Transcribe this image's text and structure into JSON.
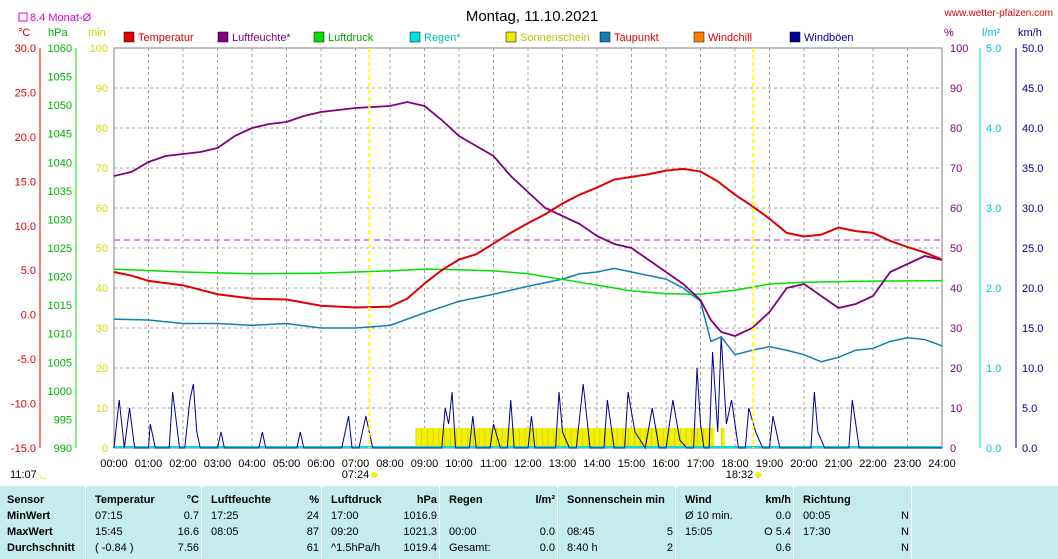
{
  "header": {
    "title": "Montag, 11.10.2021",
    "source": "www.wetter-pfalzen.com",
    "monthly_avg_label": "8.4 Monat-Ø",
    "sunrise": "07:24",
    "sunset": "18:32",
    "moon_time": "11:07"
  },
  "units": {
    "temp": "°C",
    "pressure": "hPa",
    "min": "min",
    "percent": "%",
    "rain": "l/m²",
    "wind": "km/h"
  },
  "legend": [
    {
      "label": "Temperatur",
      "color": "#e00000",
      "text_color": "#e00000"
    },
    {
      "label": "Luftfeuchte*",
      "color": "#800080",
      "text_color": "#800080"
    },
    {
      "label": "Luftdruck",
      "color": "#00e000",
      "text_color": "#00a000"
    },
    {
      "label": "Regen*",
      "color": "#00e0e0",
      "text_color": "#00c0c0"
    },
    {
      "label": "Sonnenschein",
      "color": "#e8e800",
      "text_color": "#c0c000"
    },
    {
      "label": "Taupunkt",
      "color": "#1080b0",
      "text_color": "#e00000"
    },
    {
      "label": "Windchill",
      "color": "#ff8000",
      "text_color": "#e00000"
    },
    {
      "label": "Windböen",
      "color": "#000090",
      "text_color": "#000090"
    }
  ],
  "axes": {
    "temp_ticks": [
      "30.0",
      "25.0",
      "20.0",
      "15.0",
      "10.0",
      "5.0",
      "0.0",
      "-5.0",
      "-10.0",
      "-15.0"
    ],
    "pressure_ticks": [
      "1060",
      "1055",
      "1050",
      "1045",
      "1040",
      "1035",
      "1030",
      "1025",
      "1020",
      "1015",
      "1010",
      "1005",
      "1000",
      "995",
      "990"
    ],
    "min_ticks": [
      "100",
      "90",
      "80",
      "70",
      "60",
      "50",
      "40",
      "30",
      "20",
      "10",
      "0"
    ],
    "percent_ticks": [
      "100",
      "90",
      "80",
      "70",
      "60",
      "50",
      "40",
      "30",
      "20",
      "10",
      "0"
    ],
    "rain_ticks": [
      "5.0",
      "4.0",
      "3.0",
      "2.0",
      "1.0",
      "0.0"
    ],
    "wind_ticks": [
      "50.0",
      "45.0",
      "40.0",
      "35.0",
      "30.0",
      "25.0",
      "20.0",
      "15.0",
      "10.0",
      "5.0",
      "0.0"
    ],
    "time_ticks": [
      "00:00",
      "01:00",
      "02:00",
      "03:00",
      "04:00",
      "05:00",
      "06:00",
      "07:00",
      "08:00",
      "09:00",
      "10:00",
      "11:00",
      "12:00",
      "13:00",
      "14:00",
      "15:00",
      "16:00",
      "17:00",
      "18:00",
      "19:00",
      "20:00",
      "21:00",
      "22:00",
      "23:00",
      "24:00"
    ]
  },
  "chart_data": {
    "type": "line",
    "title": "Montag, 11.10.2021",
    "x_unit": "hours",
    "xlim": [
      0,
      24
    ],
    "monthly_avg_temp": 8.4,
    "series": [
      {
        "name": "Temperatur",
        "unit": "°C",
        "ylim": [
          -15,
          30
        ],
        "points": [
          [
            0,
            4.8
          ],
          [
            0.5,
            4.4
          ],
          [
            1,
            3.8
          ],
          [
            2,
            3.3
          ],
          [
            3,
            2.3
          ],
          [
            4,
            1.8
          ],
          [
            5,
            1.7
          ],
          [
            6,
            1.0
          ],
          [
            7,
            0.8
          ],
          [
            8,
            0.9
          ],
          [
            8.5,
            1.8
          ],
          [
            9,
            3.5
          ],
          [
            9.5,
            5.0
          ],
          [
            10,
            6.2
          ],
          [
            10.5,
            6.8
          ],
          [
            11,
            8.0
          ],
          [
            11.5,
            9.2
          ],
          [
            12,
            10.3
          ],
          [
            12.5,
            11.3
          ],
          [
            13,
            12.5
          ],
          [
            13.5,
            13.5
          ],
          [
            14,
            14.3
          ],
          [
            14.5,
            15.2
          ],
          [
            15,
            15.5
          ],
          [
            15.5,
            15.8
          ],
          [
            16,
            16.2
          ],
          [
            16.5,
            16.4
          ],
          [
            17,
            16.1
          ],
          [
            17.5,
            15.0
          ],
          [
            18,
            13.5
          ],
          [
            18.5,
            12.2
          ],
          [
            19,
            10.8
          ],
          [
            19.5,
            9.2
          ],
          [
            20,
            8.8
          ],
          [
            20.5,
            9.0
          ],
          [
            21,
            9.8
          ],
          [
            21.5,
            9.4
          ],
          [
            22,
            9.2
          ],
          [
            22.5,
            8.3
          ],
          [
            23,
            7.6
          ],
          [
            23.5,
            7.0
          ],
          [
            24,
            6.2
          ]
        ]
      },
      {
        "name": "Luftfeuchte*",
        "unit": "%",
        "ylim": [
          0,
          100
        ],
        "points": [
          [
            0,
            68
          ],
          [
            0.5,
            69
          ],
          [
            1,
            71.5
          ],
          [
            1.5,
            73
          ],
          [
            2,
            73.5
          ],
          [
            2.5,
            74
          ],
          [
            3,
            75
          ],
          [
            3.5,
            78
          ],
          [
            4,
            80
          ],
          [
            4.5,
            81
          ],
          [
            5,
            81.5
          ],
          [
            5.5,
            83
          ],
          [
            6,
            84
          ],
          [
            7,
            85
          ],
          [
            8,
            85.5
          ],
          [
            8.5,
            86.5
          ],
          [
            9,
            85.5
          ],
          [
            9.5,
            82
          ],
          [
            10,
            78
          ],
          [
            11,
            73
          ],
          [
            11.5,
            68
          ],
          [
            12,
            64
          ],
          [
            12.5,
            60
          ],
          [
            13,
            58
          ],
          [
            13.5,
            56
          ],
          [
            14,
            53
          ],
          [
            14.5,
            51
          ],
          [
            15,
            50
          ],
          [
            15.5,
            47
          ],
          [
            16,
            44
          ],
          [
            16.5,
            41
          ],
          [
            17,
            37
          ],
          [
            17.3,
            32
          ],
          [
            17.6,
            29
          ],
          [
            18,
            28
          ],
          [
            18.5,
            30
          ],
          [
            19,
            34
          ],
          [
            19.5,
            40
          ],
          [
            20,
            41
          ],
          [
            20.5,
            38
          ],
          [
            21,
            35
          ],
          [
            21.5,
            36
          ],
          [
            22,
            38
          ],
          [
            22.5,
            44
          ],
          [
            23,
            46
          ],
          [
            23.5,
            48
          ],
          [
            24,
            47
          ]
        ]
      },
      {
        "name": "Luftdruck",
        "unit": "hPa",
        "ylim": [
          990,
          1060
        ],
        "points": [
          [
            0,
            1021.3
          ],
          [
            2,
            1020.8
          ],
          [
            4,
            1020.5
          ],
          [
            6,
            1020.6
          ],
          [
            8,
            1021.0
          ],
          [
            9,
            1021.3
          ],
          [
            10,
            1021.2
          ],
          [
            11,
            1021.0
          ],
          [
            12,
            1020.5
          ],
          [
            13,
            1019.5
          ],
          [
            14,
            1018.5
          ],
          [
            15,
            1017.5
          ],
          [
            16,
            1017.0
          ],
          [
            17,
            1016.9
          ],
          [
            18,
            1017.6
          ],
          [
            19,
            1018.7
          ],
          [
            20,
            1019.0
          ],
          [
            22,
            1019.2
          ],
          [
            24,
            1019.3
          ]
        ]
      },
      {
        "name": "Taupunkt",
        "unit": "°C",
        "ylim": [
          -15,
          30
        ],
        "points": [
          [
            0,
            -0.5
          ],
          [
            1,
            -0.6
          ],
          [
            2,
            -1.0
          ],
          [
            3,
            -1.0
          ],
          [
            4,
            -1.2
          ],
          [
            5,
            -1.0
          ],
          [
            6,
            -1.5
          ],
          [
            7,
            -1.5
          ],
          [
            8,
            -1.2
          ],
          [
            9,
            0.2
          ],
          [
            10,
            1.5
          ],
          [
            11,
            2.3
          ],
          [
            12,
            3.2
          ],
          [
            13,
            4.0
          ],
          [
            13.5,
            4.6
          ],
          [
            14,
            4.8
          ],
          [
            14.5,
            5.2
          ],
          [
            15,
            4.8
          ],
          [
            16,
            4.0
          ],
          [
            16.5,
            3.0
          ],
          [
            17,
            1.5
          ],
          [
            17.3,
            -3.0
          ],
          [
            17.6,
            -2.5
          ],
          [
            18,
            -4.5
          ],
          [
            18.5,
            -4.0
          ],
          [
            19,
            -3.6
          ],
          [
            19.5,
            -4.0
          ],
          [
            20,
            -4.5
          ],
          [
            20.5,
            -5.3
          ],
          [
            21,
            -4.8
          ],
          [
            21.5,
            -4.0
          ],
          [
            22,
            -3.8
          ],
          [
            22.5,
            -3.0
          ],
          [
            23,
            -2.6
          ],
          [
            23.5,
            -2.8
          ],
          [
            24,
            -3.5
          ]
        ]
      },
      {
        "name": "Windböen",
        "unit": "km/h",
        "ylim": [
          0,
          50
        ],
        "points": [
          [
            0,
            0
          ],
          [
            0.15,
            6
          ],
          [
            0.3,
            0
          ],
          [
            0.45,
            5
          ],
          [
            0.6,
            0
          ],
          [
            1.0,
            0
          ],
          [
            1.05,
            3
          ],
          [
            1.2,
            0
          ],
          [
            1.6,
            0
          ],
          [
            1.7,
            7
          ],
          [
            1.9,
            0
          ],
          [
            2.05,
            0
          ],
          [
            2.2,
            6
          ],
          [
            2.3,
            8
          ],
          [
            2.4,
            2
          ],
          [
            2.5,
            0
          ],
          [
            3.0,
            0
          ],
          [
            3.1,
            2
          ],
          [
            3.2,
            0
          ],
          [
            4.2,
            0
          ],
          [
            4.3,
            2
          ],
          [
            4.4,
            0
          ],
          [
            5.3,
            0
          ],
          [
            5.4,
            2
          ],
          [
            5.5,
            0
          ],
          [
            6.6,
            0
          ],
          [
            6.8,
            4
          ],
          [
            6.9,
            0
          ],
          [
            7.1,
            0
          ],
          [
            7.3,
            4
          ],
          [
            7.5,
            0
          ],
          [
            9.5,
            0
          ],
          [
            9.6,
            5
          ],
          [
            9.7,
            3
          ],
          [
            9.8,
            7
          ],
          [
            9.9,
            0
          ],
          [
            10.3,
            0
          ],
          [
            10.4,
            4
          ],
          [
            10.5,
            0
          ],
          [
            10.9,
            0
          ],
          [
            11.0,
            3
          ],
          [
            11.2,
            0
          ],
          [
            11.4,
            0
          ],
          [
            11.5,
            6
          ],
          [
            11.6,
            0
          ],
          [
            12.0,
            0
          ],
          [
            12.1,
            4
          ],
          [
            12.2,
            0
          ],
          [
            12.8,
            0
          ],
          [
            12.9,
            7
          ],
          [
            13.0,
            2
          ],
          [
            13.2,
            0
          ],
          [
            13.4,
            0
          ],
          [
            13.6,
            8
          ],
          [
            13.8,
            0
          ],
          [
            14.2,
            0
          ],
          [
            14.3,
            6
          ],
          [
            14.5,
            0
          ],
          [
            14.8,
            0
          ],
          [
            14.9,
            7
          ],
          [
            15.1,
            2
          ],
          [
            15.4,
            0
          ],
          [
            15.6,
            5
          ],
          [
            15.8,
            0
          ],
          [
            16.0,
            0
          ],
          [
            16.2,
            6
          ],
          [
            16.4,
            1
          ],
          [
            16.6,
            0
          ],
          [
            16.8,
            0
          ],
          [
            16.9,
            10
          ],
          [
            17.0,
            3
          ],
          [
            17.1,
            0
          ],
          [
            17.25,
            0
          ],
          [
            17.35,
            12
          ],
          [
            17.5,
            2
          ],
          [
            17.6,
            14
          ],
          [
            17.75,
            3
          ],
          [
            17.9,
            6
          ],
          [
            18.1,
            0
          ],
          [
            18.3,
            0
          ],
          [
            18.4,
            5
          ],
          [
            18.6,
            2
          ],
          [
            18.8,
            0
          ],
          [
            19.0,
            0
          ],
          [
            19.1,
            4
          ],
          [
            19.3,
            0
          ],
          [
            20.2,
            0
          ],
          [
            20.3,
            7
          ],
          [
            20.4,
            2
          ],
          [
            20.6,
            0
          ],
          [
            21.3,
            0
          ],
          [
            21.4,
            6
          ],
          [
            21.6,
            0
          ],
          [
            22.0,
            0
          ],
          [
            24.0,
            0
          ]
        ]
      },
      {
        "name": "Sonnenschein",
        "unit": "min",
        "ylim": [
          0,
          100
        ],
        "intervals": [
          [
            8.75,
            17.4
          ],
          [
            17.6,
            17.7
          ]
        ],
        "values_per_10min": 5
      }
    ],
    "rain": []
  },
  "table": {
    "columns": [
      {
        "title": "Sensor",
        "unit": "",
        "rows": [
          "MinWert",
          "MaxWert",
          "Durchschnitt"
        ]
      },
      {
        "title": "Temperatur",
        "unit": "°C",
        "rows": [
          [
            "07:15",
            "0.7"
          ],
          [
            "15:45",
            "16.6"
          ],
          [
            "( -0.84 )",
            "7.56"
          ]
        ]
      },
      {
        "title": "Luftfeuchte",
        "unit": "%",
        "rows": [
          [
            "17:25",
            "24"
          ],
          [
            "08:05",
            "87"
          ],
          [
            "",
            "61"
          ]
        ]
      },
      {
        "title": "Luftdruck",
        "unit": "hPa",
        "rows": [
          [
            "17:00",
            "1016.9"
          ],
          [
            "09:20",
            "1021.3"
          ],
          [
            "^1.5hPa/h",
            "1019.4"
          ]
        ]
      },
      {
        "title": "Regen",
        "unit": "l/m²",
        "rows": [
          [
            "",
            ""
          ],
          [
            "00:00",
            "0.0"
          ],
          [
            "Gesamt:",
            "0.0"
          ]
        ]
      },
      {
        "title": "Sonnenschein min",
        "unit": "",
        "rows": [
          [
            "",
            ""
          ],
          [
            "08:45",
            "5"
          ],
          [
            "8:40 h",
            "2"
          ]
        ]
      },
      {
        "title": "Wind",
        "unit": "km/h",
        "rows": [
          [
            "Ø 10 min.",
            "0.0"
          ],
          [
            "15:05",
            "O 5.4"
          ],
          [
            "",
            "0.6"
          ]
        ]
      },
      {
        "title": "Richtung",
        "unit": "",
        "rows": [
          [
            "00:05",
            "N"
          ],
          [
            "17:30",
            "N"
          ],
          [
            "",
            "N"
          ]
        ]
      }
    ]
  }
}
